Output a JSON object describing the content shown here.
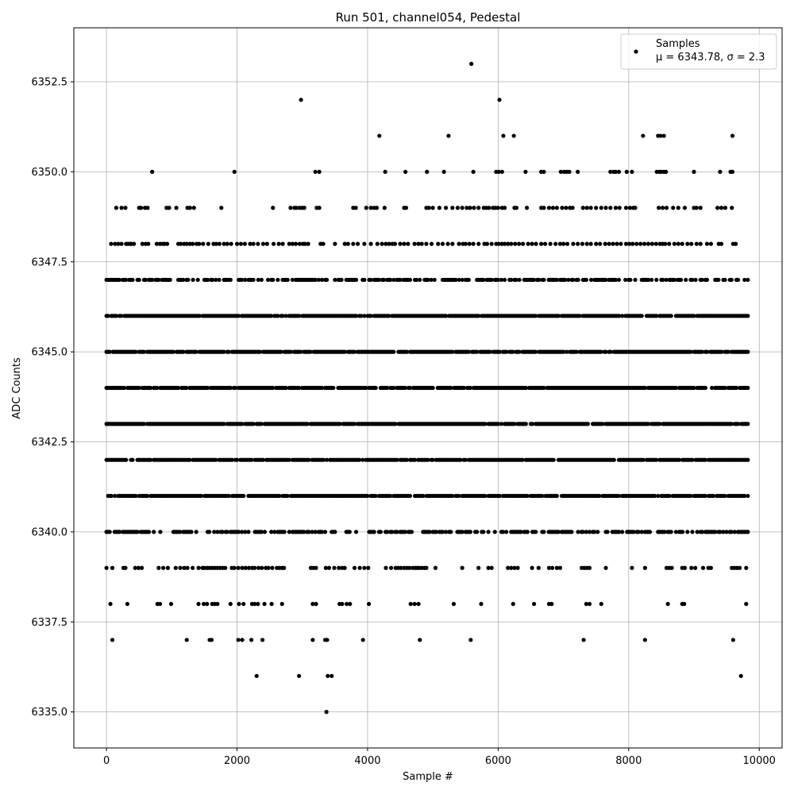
{
  "chart_data": {
    "type": "scatter",
    "title": "Run 501, channel054, Pedestal",
    "xlabel": "Sample #",
    "ylabel": "ADC Counts",
    "xlim": [
      -500,
      10350
    ],
    "ylim": [
      6334.0,
      6354.0
    ],
    "xticks": [
      0,
      2000,
      4000,
      6000,
      8000,
      10000
    ],
    "yticks": [
      6335.0,
      6337.5,
      6340.0,
      6342.5,
      6345.0,
      6347.5,
      6350.0,
      6352.5
    ],
    "grid": true,
    "legend": {
      "placement": "top-right",
      "entries": [
        {
          "label_line1": "Samples",
          "label_line2": "μ = 6343.78, σ = 2.3",
          "marker_color": "#000000"
        }
      ]
    },
    "series": [
      {
        "name": "Samples",
        "color": "#000000",
        "n_samples": 9830,
        "x_range": [
          0,
          9830
        ],
        "dense_levels": [
          6340,
          6341,
          6342,
          6343,
          6344,
          6345,
          6346,
          6347
        ],
        "sparse_levels": [
          {
            "y": 6348,
            "x": [
              70,
              130,
              180,
              230,
              300,
              330,
              360,
              380,
              420,
              550,
              600,
              640,
              770,
              820,
              860,
              890,
              930,
              1100,
              1140,
              1190,
              1230,
              1280,
              1320,
              1380,
              1420,
              1480,
              1560,
              1640,
              1680,
              1730,
              1800,
              1850,
              1910,
              2000,
              2060,
              2120,
              2200,
              2250,
              2320,
              2400,
              2460,
              2560,
              2640,
              2700,
              2800,
              2850,
              2900,
              2960,
              3010,
              3040,
              3090,
              3280,
              3320,
              3500,
              3650,
              3700,
              3780,
              3850,
              3950,
              4050,
              4150,
              4220,
              4280,
              4330,
              4380,
              4420,
              4500,
              4560,
              4620,
              4720,
              4780,
              4830,
              4900,
              4980,
              5080,
              5150,
              5230,
              5300,
              5400,
              5460,
              5500,
              5560,
              5620,
              5700,
              5790,
              5830,
              5900,
              5970,
              6010,
              6060,
              6100,
              6150,
              6200,
              6260,
              6320,
              6380,
              6460,
              6520,
              6580,
              6660,
              6720,
              6800,
              6880,
              6950,
              7000,
              7060,
              7150,
              7220,
              7290,
              7360,
              7420,
              7500,
              7560,
              7640,
              7700,
              7760,
              7820,
              7880,
              7960,
              8010,
              8060,
              8120,
              8180,
              8240,
              8300,
              8360,
              8420,
              8480,
              8520,
              8560,
              8620,
              8700,
              8760,
              8820,
              8900,
              8960,
              9040,
              9100,
              9200,
              9260,
              9380,
              9420,
              9600,
              9640
            ]
          },
          {
            "y": 6349,
            "x": [
              150,
              230,
              290,
              500,
              530,
              590,
              630,
              920,
              960,
              1070,
              1240,
              1280,
              1340,
              1760,
              2550,
              2820,
              2880,
              2910,
              2960,
              3000,
              3030,
              3220,
              3260,
              3780,
              3820,
              3980,
              4050,
              4100,
              4140,
              4260,
              4560,
              4590,
              4900,
              4940,
              5000,
              5100,
              5200,
              5300,
              5380,
              5450,
              5520,
              5570,
              5630,
              5700,
              5780,
              5820,
              5860,
              5920,
              5960,
              6000,
              6060,
              6100,
              6250,
              6280,
              6440,
              6660,
              6700,
              6780,
              6840,
              6900,
              6980,
              7040,
              7100,
              7140,
              7300,
              7360,
              7420,
              7500,
              7580,
              7650,
              7720,
              7800,
              7860,
              7960,
              8020,
              8070,
              8100,
              8460,
              8520,
              8580,
              8680,
              8760,
              8860,
              9000,
              9040,
              9100,
              9360,
              9420,
              9480,
              9580
            ]
          },
          {
            "y": 6350,
            "x": [
              700,
              1960,
              3200,
              3260,
              4270,
              4580,
              4910,
              5170,
              5620,
              5970,
              6010,
              6060,
              6420,
              6660,
              6700,
              6960,
              7010,
              7050,
              7090,
              7220,
              7720,
              7770,
              7800,
              7850,
              7970,
              8050,
              8430,
              8470,
              8500,
              8540,
              8570,
              9000,
              9400,
              9560,
              9590
            ]
          },
          {
            "y": 6351,
            "x": [
              4180,
              5240,
              6080,
              6240,
              8220,
              8450,
              8490,
              8540,
              9590
            ]
          },
          {
            "y": 6352,
            "x": [
              2980,
              6020
            ]
          },
          {
            "y": 6353,
            "x": [
              5590
            ]
          },
          {
            "y": 6339,
            "x": [
              0,
              90,
              260,
              290,
              440,
              490,
              540,
              800,
              870,
              940,
              1060,
              1130,
              1190,
              1240,
              1320,
              1410,
              1470,
              1500,
              1540,
              1580,
              1620,
              1660,
              1700,
              1740,
              1780,
              1820,
              1920,
              1960,
              2020,
              2080,
              2130,
              2180,
              2230,
              2270,
              2330,
              2380,
              2440,
              2480,
              2540,
              2610,
              2650,
              2690,
              2720,
              3130,
              3170,
              3210,
              3360,
              3410,
              3490,
              3560,
              3610,
              3650,
              3800,
              3880,
              3950,
              4010,
              4280,
              4360,
              4430,
              4470,
              4510,
              4560,
              4600,
              4640,
              4690,
              4730,
              4760,
              4790,
              4830,
              4870,
              4900,
              5040,
              5450,
              5700,
              5850,
              5900,
              6150,
              6200,
              6250,
              6300,
              6520,
              6620,
              6780,
              6830,
              6900,
              6950,
              7280,
              7320,
              7360,
              7400,
              7650,
              8050,
              8250,
              8580,
              8620,
              8660,
              8820,
              8860,
              8960,
              9020,
              9140,
              9220,
              9260,
              9580,
              9620,
              9660,
              9700,
              9800
            ]
          },
          {
            "y": 6338,
            "x": [
              60,
              320,
              780,
              820,
              990,
              1410,
              1490,
              1540,
              1620,
              1660,
              1700,
              1900,
              2030,
              2100,
              2230,
              2270,
              2320,
              2420,
              2530,
              2690,
              3160,
              3210,
              3570,
              3610,
              3680,
              3730,
              4020,
              4660,
              4720,
              4780,
              5320,
              5740,
              6230,
              6550,
              6780,
              6820,
              7350,
              7400,
              7580,
              8600,
              8820,
              8850,
              9800
            ]
          },
          {
            "y": 6337,
            "x": [
              90,
              1230,
              1580,
              1610,
              2020,
              2080,
              2220,
              2390,
              3160,
              3350,
              3380,
              3930,
              4800,
              5580,
              7310,
              8250,
              9600
            ]
          },
          {
            "y": 6336,
            "x": [
              2300,
              2950,
              3390,
              3450,
              9720
            ]
          },
          {
            "y": 6335,
            "x": [
              3370
            ]
          }
        ]
      }
    ]
  }
}
